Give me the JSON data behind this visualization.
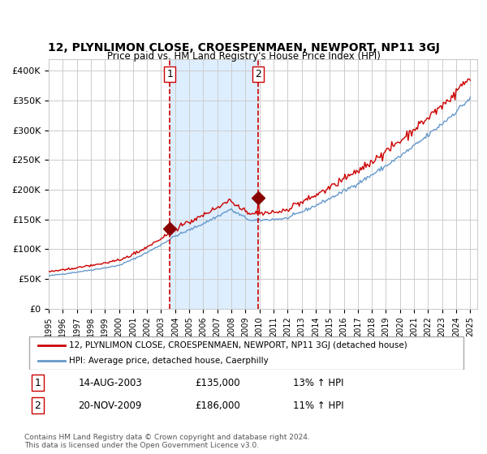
{
  "title": "12, PLYNLIMON CLOSE, CROESPENMAEN, NEWPORT, NP11 3GJ",
  "subtitle": "Price paid vs. HM Land Registry's House Price Index (HPI)",
  "legend_line1": "12, PLYNLIMON CLOSE, CROESPENMAEN, NEWPORT, NP11 3GJ (detached house)",
  "legend_line2": "HPI: Average price, detached house, Caerphilly",
  "transaction1_label": "1",
  "transaction1_date": "14-AUG-2003",
  "transaction1_price": 135000,
  "transaction1_pct": "13% ↑ HPI",
  "transaction2_label": "2",
  "transaction2_date": "20-NOV-2009",
  "transaction2_price": 186000,
  "transaction2_pct": "11% ↑ HPI",
  "footer": "Contains HM Land Registry data © Crown copyright and database right 2024.\nThis data is licensed under the Open Government Licence v3.0.",
  "red_color": "#cc0000",
  "blue_color": "#6699cc",
  "shaded_color": "#ddeeff",
  "dashed_color": "#cc0000",
  "background_color": "#ffffff",
  "grid_color": "#cccccc",
  "ylim": [
    0,
    420000
  ],
  "yticks": [
    0,
    50000,
    100000,
    150000,
    200000,
    250000,
    300000,
    350000,
    400000
  ],
  "start_year": 1995,
  "end_year": 2025,
  "transaction1_x": 2003.62,
  "transaction2_x": 2009.9
}
